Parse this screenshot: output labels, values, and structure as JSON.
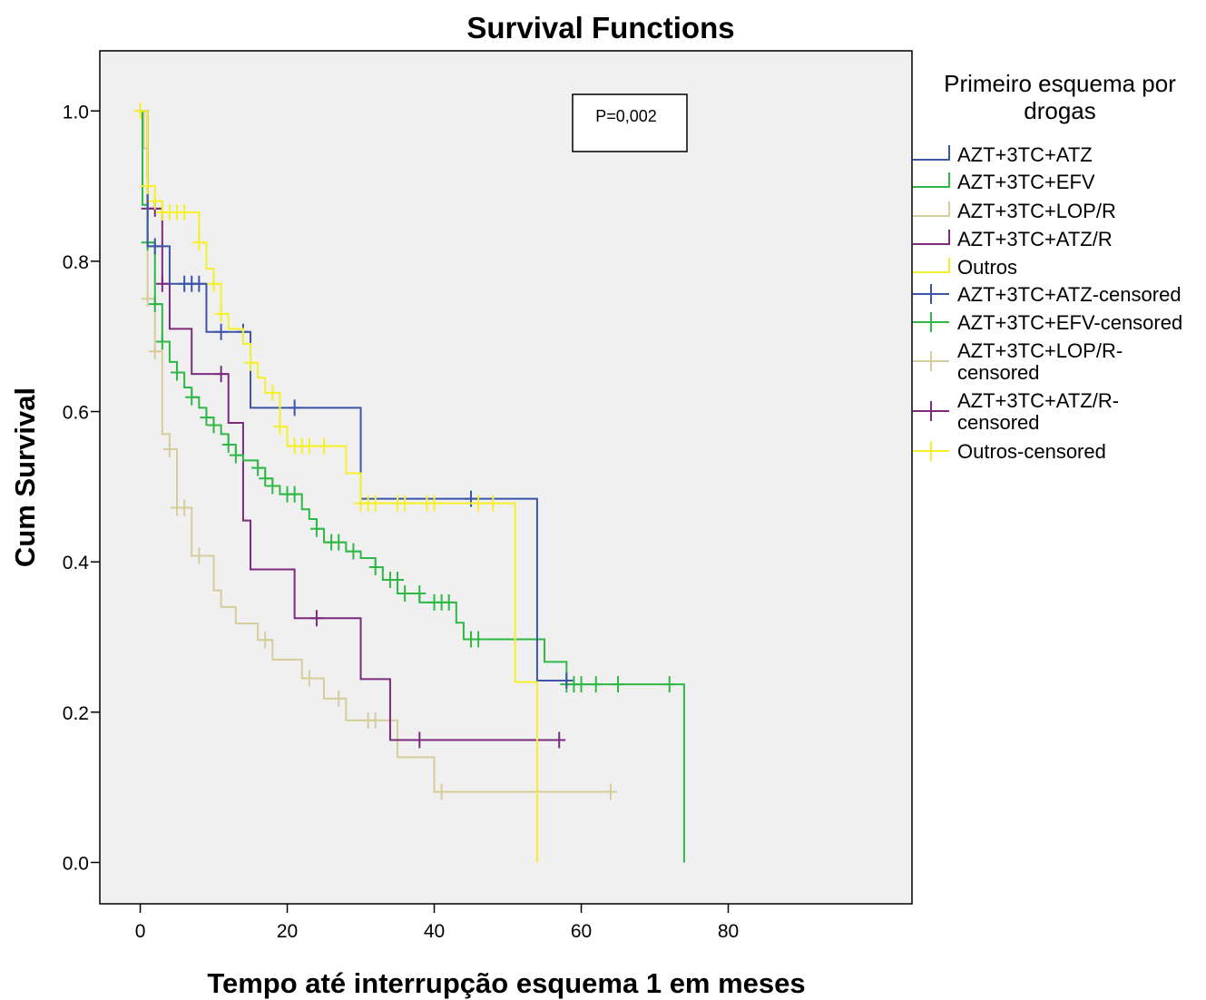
{
  "chart_data": {
    "type": "line",
    "title": "Survival Functions",
    "xlabel": "Tempo até interrupção esquema 1 em meses",
    "ylabel": "Cum Survival",
    "xlim": [
      -5.5,
      105
    ],
    "ylim": [
      -0.055,
      1.08
    ],
    "x_ticks": [
      0,
      20,
      40,
      60,
      80
    ],
    "x_tick_labels": [
      "0",
      "20",
      "40",
      "60",
      "80"
    ],
    "y_ticks": [
      0.0,
      0.2,
      0.4,
      0.6,
      0.8,
      1.0
    ],
    "y_tick_labels": [
      "0.0",
      "0.2",
      "0.4",
      "0.6",
      "0.8",
      "1.0"
    ],
    "grid": false,
    "plot_background": "#f0f0f0",
    "annotation": "P=0,002",
    "legend": {
      "title": "Primeiro esquema por drogas",
      "placement": "right",
      "entries": [
        {
          "label": "AZT+3TC+ATZ",
          "color": "#3d55a8",
          "marker": "step"
        },
        {
          "label": "AZT+3TC+EFV",
          "color": "#2fb845",
          "marker": "step"
        },
        {
          "label": "AZT+3TC+LOP/R",
          "color": "#d6cc9c",
          "marker": "step"
        },
        {
          "label": "AZT+3TC+ATZ/R",
          "color": "#7b2a7e",
          "marker": "step"
        },
        {
          "label": "Outros",
          "color": "#f5f02a",
          "marker": "step"
        },
        {
          "label": "AZT+3TC+ATZ-censored",
          "color": "#3d55a8",
          "marker": "cross"
        },
        {
          "label": "AZT+3TC+EFV-censored",
          "color": "#2fb845",
          "marker": "cross"
        },
        {
          "label": "AZT+3TC+LOP/R-",
          "label2": "censored",
          "color": "#d6cc9c",
          "marker": "cross"
        },
        {
          "label": "AZT+3TC+ATZ/R-",
          "label2": "censored",
          "color": "#7b2a7e",
          "marker": "cross"
        },
        {
          "label": "Outros-censored",
          "color": "#f5f02a",
          "marker": "cross"
        }
      ]
    },
    "series": [
      {
        "name": "AZT+3TC+ATZ",
        "color": "#3d55a8",
        "steps": [
          [
            0,
            1.0
          ],
          [
            1,
            0.82
          ],
          [
            4,
            0.77
          ],
          [
            9,
            0.706
          ],
          [
            15,
            0.605
          ],
          [
            30,
            0.484
          ],
          [
            54,
            0.242
          ],
          [
            58,
            0.242
          ]
        ],
        "censored": [
          [
            2,
            0.82
          ],
          [
            6,
            0.77
          ],
          [
            7,
            0.77
          ],
          [
            8,
            0.77
          ],
          [
            11,
            0.706
          ],
          [
            14,
            0.706
          ],
          [
            21,
            0.605
          ],
          [
            45,
            0.484
          ],
          [
            58,
            0.242
          ]
        ]
      },
      {
        "name": "AZT+3TC+EFV",
        "color": "#2fb845",
        "steps": [
          [
            0,
            1.0
          ],
          [
            0.3,
            0.875
          ],
          [
            1,
            0.825
          ],
          [
            2,
            0.743
          ],
          [
            3,
            0.693
          ],
          [
            4,
            0.666
          ],
          [
            5,
            0.652
          ],
          [
            6,
            0.632
          ],
          [
            7,
            0.619
          ],
          [
            8,
            0.605
          ],
          [
            9,
            0.592
          ],
          [
            10,
            0.582
          ],
          [
            11,
            0.57
          ],
          [
            12,
            0.556
          ],
          [
            13,
            0.542
          ],
          [
            14,
            0.535
          ],
          [
            16,
            0.525
          ],
          [
            17,
            0.511
          ],
          [
            18,
            0.501
          ],
          [
            19,
            0.49
          ],
          [
            22,
            0.47
          ],
          [
            23,
            0.457
          ],
          [
            24,
            0.444
          ],
          [
            25,
            0.426
          ],
          [
            28,
            0.414
          ],
          [
            30,
            0.405
          ],
          [
            32,
            0.393
          ],
          [
            33,
            0.376
          ],
          [
            35,
            0.358
          ],
          [
            38,
            0.346
          ],
          [
            43,
            0.319
          ],
          [
            44,
            0.297
          ],
          [
            55,
            0.267
          ],
          [
            58,
            0.237
          ],
          [
            74,
            0.0
          ]
        ],
        "censored": [
          [
            1,
            0.825
          ],
          [
            2,
            0.743
          ],
          [
            3,
            0.693
          ],
          [
            5,
            0.652
          ],
          [
            7,
            0.619
          ],
          [
            9,
            0.592
          ],
          [
            10,
            0.582
          ],
          [
            12,
            0.556
          ],
          [
            13,
            0.542
          ],
          [
            16,
            0.525
          ],
          [
            17,
            0.511
          ],
          [
            18,
            0.501
          ],
          [
            20,
            0.49
          ],
          [
            21,
            0.49
          ],
          [
            24,
            0.444
          ],
          [
            26,
            0.426
          ],
          [
            27,
            0.426
          ],
          [
            29,
            0.414
          ],
          [
            32,
            0.393
          ],
          [
            34,
            0.376
          ],
          [
            35,
            0.376
          ],
          [
            36,
            0.358
          ],
          [
            38,
            0.358
          ],
          [
            40,
            0.346
          ],
          [
            41,
            0.346
          ],
          [
            42,
            0.346
          ],
          [
            45,
            0.297
          ],
          [
            46,
            0.297
          ],
          [
            58,
            0.237
          ],
          [
            59,
            0.237
          ],
          [
            60,
            0.237
          ],
          [
            62,
            0.237
          ],
          [
            65,
            0.237
          ],
          [
            72,
            0.237
          ]
        ]
      },
      {
        "name": "AZT+3TC+LOP/R",
        "color": "#d6cc9c",
        "steps": [
          [
            0,
            1.0
          ],
          [
            0.5,
            0.95
          ],
          [
            1,
            0.75
          ],
          [
            2,
            0.68
          ],
          [
            3,
            0.57
          ],
          [
            4,
            0.55
          ],
          [
            5,
            0.472
          ],
          [
            7,
            0.408
          ],
          [
            10,
            0.362
          ],
          [
            11,
            0.34
          ],
          [
            13,
            0.318
          ],
          [
            16,
            0.296
          ],
          [
            18,
            0.27
          ],
          [
            22,
            0.245
          ],
          [
            25,
            0.218
          ],
          [
            28,
            0.189
          ],
          [
            35,
            0.14
          ],
          [
            40,
            0.094
          ],
          [
            64,
            0.094
          ]
        ],
        "censored": [
          [
            1,
            0.75
          ],
          [
            2,
            0.68
          ],
          [
            4,
            0.55
          ],
          [
            5,
            0.472
          ],
          [
            6,
            0.472
          ],
          [
            8,
            0.408
          ],
          [
            17,
            0.296
          ],
          [
            23,
            0.245
          ],
          [
            27,
            0.218
          ],
          [
            31,
            0.189
          ],
          [
            32,
            0.189
          ],
          [
            41,
            0.094
          ],
          [
            64,
            0.094
          ]
        ]
      },
      {
        "name": "AZT+3TC+ATZ/R",
        "color": "#7b2a7e",
        "steps": [
          [
            0,
            1.0
          ],
          [
            1,
            0.87
          ],
          [
            3,
            0.77
          ],
          [
            4,
            0.71
          ],
          [
            7,
            0.65
          ],
          [
            12,
            0.585
          ],
          [
            14,
            0.455
          ],
          [
            15,
            0.39
          ],
          [
            21,
            0.325
          ],
          [
            30,
            0.244
          ],
          [
            34,
            0.163
          ],
          [
            57,
            0.163
          ]
        ],
        "censored": [
          [
            1,
            0.87
          ],
          [
            2,
            0.87
          ],
          [
            3,
            0.77
          ],
          [
            11,
            0.65
          ],
          [
            24,
            0.325
          ],
          [
            38,
            0.163
          ],
          [
            57,
            0.163
          ]
        ]
      },
      {
        "name": "Outros",
        "color": "#f5f02a",
        "steps": [
          [
            0,
            1.0
          ],
          [
            1,
            0.9
          ],
          [
            2,
            0.88
          ],
          [
            3,
            0.865
          ],
          [
            8,
            0.825
          ],
          [
            9,
            0.79
          ],
          [
            10,
            0.77
          ],
          [
            11,
            0.73
          ],
          [
            12,
            0.71
          ],
          [
            14,
            0.69
          ],
          [
            15,
            0.665
          ],
          [
            16,
            0.645
          ],
          [
            17,
            0.625
          ],
          [
            19,
            0.58
          ],
          [
            20,
            0.554
          ],
          [
            28,
            0.518
          ],
          [
            30,
            0.478
          ],
          [
            51,
            0.24
          ],
          [
            54,
            0.0
          ]
        ],
        "censored": [
          [
            0,
            1.0
          ],
          [
            1,
            0.9
          ],
          [
            2,
            0.88
          ],
          [
            3,
            0.865
          ],
          [
            4,
            0.865
          ],
          [
            5,
            0.865
          ],
          [
            6,
            0.865
          ],
          [
            8,
            0.825
          ],
          [
            10,
            0.77
          ],
          [
            11,
            0.73
          ],
          [
            15,
            0.665
          ],
          [
            18,
            0.625
          ],
          [
            19,
            0.58
          ],
          [
            21,
            0.554
          ],
          [
            22,
            0.554
          ],
          [
            23,
            0.554
          ],
          [
            25,
            0.554
          ],
          [
            30,
            0.478
          ],
          [
            31,
            0.478
          ],
          [
            32,
            0.478
          ],
          [
            35,
            0.478
          ],
          [
            36,
            0.478
          ],
          [
            39,
            0.478
          ],
          [
            40,
            0.478
          ],
          [
            46,
            0.478
          ],
          [
            48,
            0.478
          ]
        ]
      }
    ]
  }
}
